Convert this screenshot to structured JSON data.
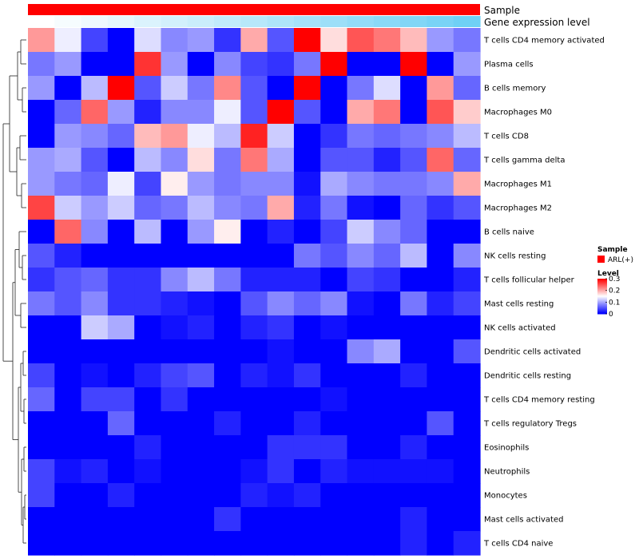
{
  "chart_data": {
    "type": "heatmap",
    "rows": [
      "T cells CD4 memory activated",
      "Plasma cells",
      "B cells memory",
      "Macrophages M0",
      "T cells CD8",
      "T cells gamma delta",
      "Macrophages M1",
      "Macrophages M2",
      "B cells naive",
      "NK cells resting",
      "T cells follicular helper",
      "Mast cells resting",
      "NK cells activated",
      "Dendritic cells activated",
      "Dendritic cells resting",
      "T cells CD4 memory resting",
      "T cells regulatory  Tregs",
      "Eosinophils",
      "Neutrophils",
      "Monocytes",
      "Mast cells activated",
      "T cells CD4 naive"
    ],
    "values": [
      [
        0.21,
        0.14,
        0.04,
        0.0,
        0.13,
        0.08,
        0.09,
        0.03,
        0.2,
        0.05,
        0.3,
        0.17,
        0.25,
        0.23,
        0.19,
        0.09,
        0.07
      ],
      [
        0.07,
        0.09,
        0.0,
        0.0,
        0.27,
        0.09,
        0.0,
        0.08,
        0.04,
        0.03,
        0.07,
        0.3,
        0.0,
        0.0,
        0.3,
        0.0,
        0.09
      ],
      [
        0.09,
        0.0,
        0.11,
        0.3,
        0.05,
        0.12,
        0.07,
        0.22,
        0.05,
        0.0,
        0.3,
        0.0,
        0.07,
        0.13,
        0.0,
        0.21,
        0.06
      ],
      [
        0.0,
        0.06,
        0.24,
        0.09,
        0.02,
        0.08,
        0.08,
        0.14,
        0.05,
        0.3,
        0.05,
        0.0,
        0.2,
        0.23,
        0.0,
        0.25,
        0.18
      ],
      [
        0.0,
        0.09,
        0.08,
        0.06,
        0.19,
        0.21,
        0.14,
        0.11,
        0.28,
        0.12,
        0.0,
        0.03,
        0.07,
        0.06,
        0.07,
        0.08,
        0.11
      ],
      [
        0.09,
        0.1,
        0.05,
        0.0,
        0.11,
        0.08,
        0.17,
        0.07,
        0.23,
        0.1,
        0.0,
        0.05,
        0.05,
        0.02,
        0.05,
        0.24,
        0.06
      ],
      [
        0.09,
        0.07,
        0.06,
        0.14,
        0.04,
        0.16,
        0.09,
        0.07,
        0.08,
        0.08,
        0.01,
        0.1,
        0.08,
        0.07,
        0.07,
        0.08,
        0.2
      ],
      [
        0.26,
        0.12,
        0.09,
        0.12,
        0.06,
        0.07,
        0.11,
        0.08,
        0.07,
        0.2,
        0.02,
        0.07,
        0.01,
        0.0,
        0.06,
        0.03,
        0.05
      ],
      [
        0.0,
        0.24,
        0.08,
        0.0,
        0.11,
        0.0,
        0.09,
        0.16,
        0.0,
        0.02,
        0.0,
        0.04,
        0.12,
        0.08,
        0.06,
        0.0,
        0.0
      ],
      [
        0.05,
        0.02,
        0.0,
        0.0,
        0.0,
        0.0,
        0.0,
        0.0,
        0.0,
        0.0,
        0.07,
        0.05,
        0.08,
        0.06,
        0.11,
        0.0,
        0.08
      ],
      [
        0.03,
        0.05,
        0.06,
        0.03,
        0.03,
        0.08,
        0.11,
        0.07,
        0.02,
        0.02,
        0.02,
        0.0,
        0.04,
        0.03,
        0.0,
        0.0,
        0.02
      ],
      [
        0.07,
        0.05,
        0.08,
        0.03,
        0.03,
        0.02,
        0.01,
        0.0,
        0.05,
        0.08,
        0.06,
        0.08,
        0.01,
        0.0,
        0.07,
        0.02,
        0.04
      ],
      [
        0.0,
        0.0,
        0.12,
        0.1,
        0.0,
        0.01,
        0.02,
        0.0,
        0.02,
        0.03,
        0.0,
        0.01,
        0.0,
        0.0,
        0.0,
        0.0,
        0.0
      ],
      [
        0.0,
        0.0,
        0.0,
        0.0,
        0.0,
        0.0,
        0.0,
        0.0,
        0.0,
        0.01,
        0.0,
        0.0,
        0.08,
        0.1,
        0.0,
        0.0,
        0.05
      ],
      [
        0.04,
        0.0,
        0.01,
        0.0,
        0.02,
        0.04,
        0.05,
        0.0,
        0.02,
        0.01,
        0.03,
        0.0,
        0.0,
        0.0,
        0.02,
        0.0,
        0.0
      ],
      [
        0.06,
        0.0,
        0.04,
        0.04,
        0.0,
        0.03,
        0.0,
        0.0,
        0.0,
        0.0,
        0.0,
        0.01,
        0.0,
        0.0,
        0.0,
        0.0,
        0.0
      ],
      [
        0.0,
        0.0,
        0.0,
        0.06,
        0.0,
        0.0,
        0.0,
        0.02,
        0.0,
        0.0,
        0.02,
        0.0,
        0.0,
        0.0,
        0.0,
        0.05,
        0.0
      ],
      [
        0.0,
        0.0,
        0.0,
        0.0,
        0.02,
        0.0,
        0.0,
        0.0,
        0.0,
        0.03,
        0.03,
        0.03,
        0.0,
        0.0,
        0.02,
        0.0,
        0.0
      ],
      [
        0.04,
        0.01,
        0.02,
        0.0,
        0.01,
        0.0,
        0.0,
        0.0,
        0.01,
        0.03,
        0.0,
        0.02,
        0.01,
        0.01,
        0.01,
        0.01,
        0.0
      ],
      [
        0.04,
        0.0,
        0.0,
        0.02,
        0.0,
        0.0,
        0.0,
        0.0,
        0.02,
        0.01,
        0.02,
        0.0,
        0.0,
        0.0,
        0.0,
        0.0,
        0.0
      ],
      [
        0.0,
        0.0,
        0.0,
        0.0,
        0.0,
        0.0,
        0.0,
        0.03,
        0.0,
        0.0,
        0.0,
        0.0,
        0.0,
        0.0,
        0.02,
        0.0,
        0.0
      ],
      [
        0.0,
        0.0,
        0.0,
        0.0,
        0.0,
        0.0,
        0.0,
        0.0,
        0.0,
        0.0,
        0.0,
        0.0,
        0.0,
        0.0,
        0.02,
        0.0,
        0.02
      ]
    ],
    "annotation_tracks": [
      {
        "name": "Sample",
        "color": "#ff0000"
      },
      {
        "name": "Gene expression level",
        "values": [
          0.0,
          0.06,
          0.12,
          0.18,
          0.25,
          0.31,
          0.37,
          0.43,
          0.5,
          0.56,
          0.62,
          0.68,
          0.75,
          0.81,
          0.87,
          0.93,
          1.0
        ],
        "low_color": "#ffffff",
        "high_color": "#6fd0f5"
      }
    ],
    "legend": {
      "sample_title": "Sample",
      "sample_entry": "ARL(+)",
      "sample_color": "#ff0000",
      "level_title": "Level",
      "ticks": [
        "0.3",
        "0.2",
        "0.1",
        "0"
      ],
      "tick_values": [
        0.3,
        0.2,
        0.1,
        0.0
      ],
      "range": [
        0,
        0.3
      ],
      "low_color": "#0000ff",
      "mid_color": "#ffffff",
      "high_color": "#ff0000"
    },
    "row_dendrogram": true
  }
}
